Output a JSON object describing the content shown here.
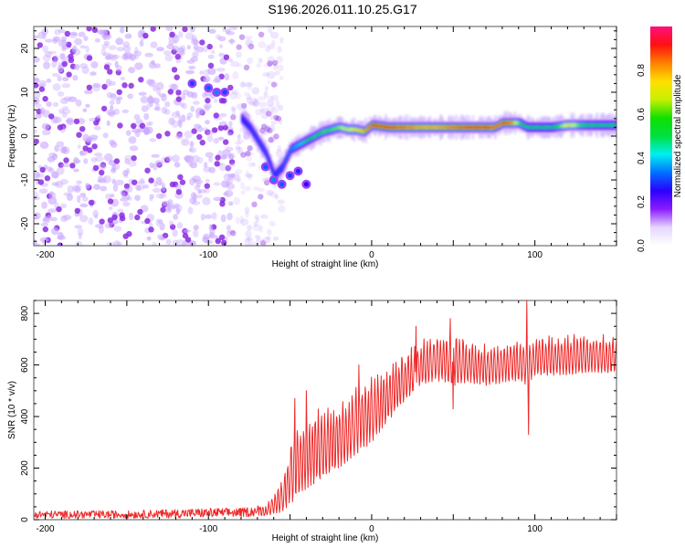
{
  "chart_data": [
    {
      "id": "spectrogram",
      "type": "heatmap",
      "title": "S196.2026.011.10.25.G17",
      "xlabel": "Height of straight line (km)",
      "ylabel": "Frequency (Hz)",
      "xlim": [
        -207,
        150
      ],
      "ylim": [
        -25,
        25
      ],
      "xticks": [
        -200,
        -100,
        0,
        100
      ],
      "yticks": [
        -20,
        -10,
        0,
        10,
        20
      ],
      "colorbar": {
        "label": "Normalized spectral amplitude",
        "range": [
          0,
          1
        ],
        "ticks": [
          "0.0",
          "0.2",
          "0.4",
          "0.6",
          "0.8"
        ],
        "colors": [
          "#ffffff",
          "#e6d6ff",
          "#8a1cff",
          "#2b00ff",
          "#0070ff",
          "#00f0f0",
          "#00e040",
          "#10e000",
          "#c8f000",
          "#ffe000",
          "#ff8000",
          "#ff1010",
          "#ff1080"
        ]
      },
      "noise_region": {
        "x_range": [
          -207,
          -65
        ],
        "amplitude_max": 0.12
      },
      "ridge": {
        "x": [
          -80,
          -75,
          -70,
          -65,
          -60,
          -55,
          -50,
          -45,
          -40,
          -35,
          -30,
          -25,
          -20,
          -15,
          -10,
          -5,
          0,
          10,
          20,
          30,
          40,
          50,
          60,
          70,
          75,
          80,
          85,
          90,
          95,
          100,
          110,
          120,
          130,
          140,
          150
        ],
        "frequency": [
          4,
          2,
          -1,
          -4,
          -9,
          -7,
          -3,
          -2,
          -1,
          0,
          1,
          1.5,
          2,
          1.5,
          1.5,
          1,
          2.5,
          2,
          2,
          2,
          2,
          2,
          2,
          2,
          2,
          3,
          3,
          3,
          2,
          2,
          2,
          2.5,
          2.5,
          2.5,
          2.5
        ],
        "amplitude": [
          0.25,
          0.28,
          0.3,
          0.3,
          0.28,
          0.3,
          0.35,
          0.4,
          0.5,
          0.55,
          0.6,
          0.6,
          0.65,
          0.7,
          0.75,
          0.8,
          0.9,
          0.9,
          0.85,
          0.8,
          0.8,
          0.85,
          0.9,
          0.9,
          0.85,
          0.9,
          0.85,
          0.6,
          0.5,
          0.5,
          0.5,
          0.75,
          0.55,
          0.5,
          0.5
        ]
      },
      "upper_branch": {
        "x": [
          -110,
          -100,
          -95,
          -90
        ],
        "frequency": [
          12,
          11,
          10,
          10
        ],
        "amplitude": [
          0.2,
          0.22,
          0.25,
          0.2
        ]
      },
      "lower_branch": {
        "x": [
          -65,
          -60,
          -55,
          -50,
          -45,
          -40
        ],
        "frequency": [
          -7,
          -10,
          -11,
          -9,
          -8,
          -11
        ],
        "amplitude": [
          0.22,
          0.25,
          0.22,
          0.2,
          0.18,
          0.15
        ]
      }
    },
    {
      "id": "snr",
      "type": "line",
      "title": "",
      "xlabel": "Height of straight line (km)",
      "ylabel": "SNR (10 * v/v)",
      "xlim": [
        -207,
        150
      ],
      "ylim": [
        0,
        850
      ],
      "xticks": [
        -200,
        -100,
        0,
        100
      ],
      "yticks": [
        0,
        200,
        400,
        600,
        800
      ],
      "color": "#ee2a2a",
      "series": [
        {
          "name": "SNR",
          "envelope_x": [
            -207,
            -150,
            -100,
            -80,
            -65,
            -55,
            -50,
            -45,
            -40,
            -30,
            -20,
            -10,
            0,
            10,
            20,
            30,
            40,
            50,
            60,
            70,
            80,
            90,
            95,
            100,
            110,
            120,
            130,
            140,
            150
          ],
          "envelope_low": [
            5,
            5,
            8,
            10,
            15,
            30,
            60,
            90,
            120,
            160,
            200,
            250,
            300,
            380,
            460,
            520,
            540,
            520,
            530,
            520,
            530,
            540,
            520,
            560,
            560,
            560,
            570,
            570,
            570
          ],
          "envelope_high": [
            35,
            35,
            45,
            45,
            60,
            150,
            300,
            380,
            420,
            440,
            470,
            520,
            560,
            600,
            650,
            700,
            730,
            740,
            690,
            690,
            690,
            700,
            700,
            710,
            720,
            720,
            720,
            720,
            720
          ],
          "spikes": [
            {
              "x": -47,
              "y": 470
            },
            {
              "x": -40,
              "y": 500
            },
            {
              "x": -8,
              "y": 600
            },
            {
              "x": 27,
              "y": 750
            },
            {
              "x": 48,
              "y": 780
            },
            {
              "x": 50,
              "y": 430
            },
            {
              "x": 95,
              "y": 850
            },
            {
              "x": 96,
              "y": 330
            }
          ]
        }
      ]
    }
  ]
}
